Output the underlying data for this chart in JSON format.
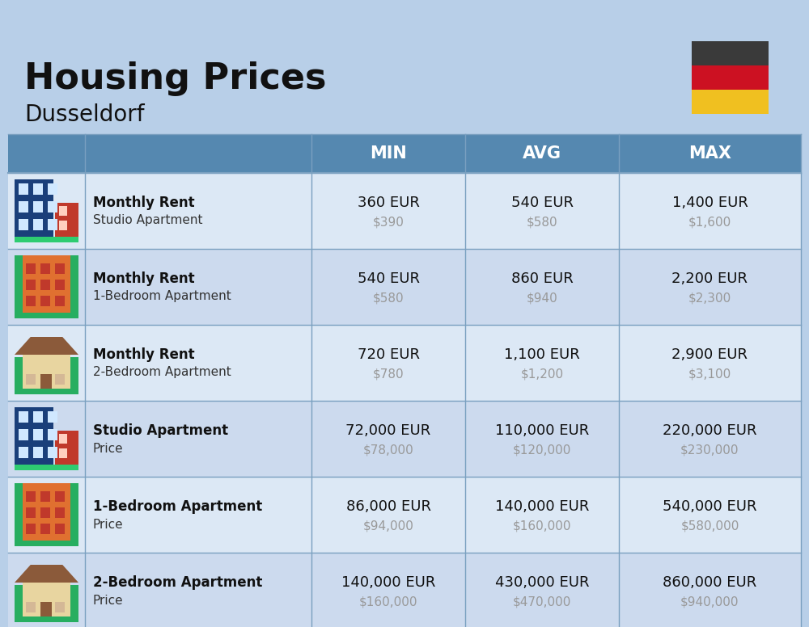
{
  "title": "Housing Prices",
  "subtitle": "Dusseldorf",
  "bg_color": "#b8cfe8",
  "header_bg": "#5588b0",
  "header_text_color": "#ffffff",
  "row_bg_even": "#dce8f5",
  "row_bg_odd": "#ccdaee",
  "col_headers": [
    "MIN",
    "AVG",
    "MAX"
  ],
  "rows": [
    {
      "bold": "Monthly Rent",
      "normal": "Studio Apartment",
      "min_eur": "360 EUR",
      "min_usd": "$390",
      "avg_eur": "540 EUR",
      "avg_usd": "$580",
      "max_eur": "1,400 EUR",
      "max_usd": "$1,600",
      "icon_type": "studio_blue"
    },
    {
      "bold": "Monthly Rent",
      "normal": "1-Bedroom Apartment",
      "min_eur": "540 EUR",
      "min_usd": "$580",
      "avg_eur": "860 EUR",
      "avg_usd": "$940",
      "max_eur": "2,200 EUR",
      "max_usd": "$2,300",
      "icon_type": "apartment_orange"
    },
    {
      "bold": "Monthly Rent",
      "normal": "2-Bedroom Apartment",
      "min_eur": "720 EUR",
      "min_usd": "$780",
      "avg_eur": "1,100 EUR",
      "avg_usd": "$1,200",
      "max_eur": "2,900 EUR",
      "max_usd": "$3,100",
      "icon_type": "house_beige"
    },
    {
      "bold": "Studio Apartment",
      "normal": "Price",
      "min_eur": "72,000 EUR",
      "min_usd": "$78,000",
      "avg_eur": "110,000 EUR",
      "avg_usd": "$120,000",
      "max_eur": "220,000 EUR",
      "max_usd": "$230,000",
      "icon_type": "studio_blue"
    },
    {
      "bold": "1-Bedroom Apartment",
      "normal": "Price",
      "min_eur": "86,000 EUR",
      "min_usd": "$94,000",
      "avg_eur": "140,000 EUR",
      "avg_usd": "$160,000",
      "max_eur": "540,000 EUR",
      "max_usd": "$580,000",
      "icon_type": "apartment_orange"
    },
    {
      "bold": "2-Bedroom Apartment",
      "normal": "Price",
      "min_eur": "140,000 EUR",
      "min_usd": "$160,000",
      "avg_eur": "430,000 EUR",
      "avg_usd": "$470,000",
      "max_eur": "860,000 EUR",
      "max_usd": "$940,000",
      "icon_type": "house_beige"
    }
  ],
  "flag_colors": [
    "#3a3a3a",
    "#cc1122",
    "#f0c020"
  ],
  "usd_color": "#999999",
  "separator_color": "#7aa0c0",
  "icon_blue_main": "#1a3a6e",
  "icon_blue_side": "#c0392b",
  "icon_blue_base": "#27ae60",
  "icon_orange_main": "#e07030",
  "icon_orange_win": "#c0392b",
  "icon_orange_tree": "#27ae60",
  "icon_beige_main": "#e8d5a0",
  "icon_beige_roof": "#8b5a3a",
  "icon_beige_tree": "#27ae60"
}
